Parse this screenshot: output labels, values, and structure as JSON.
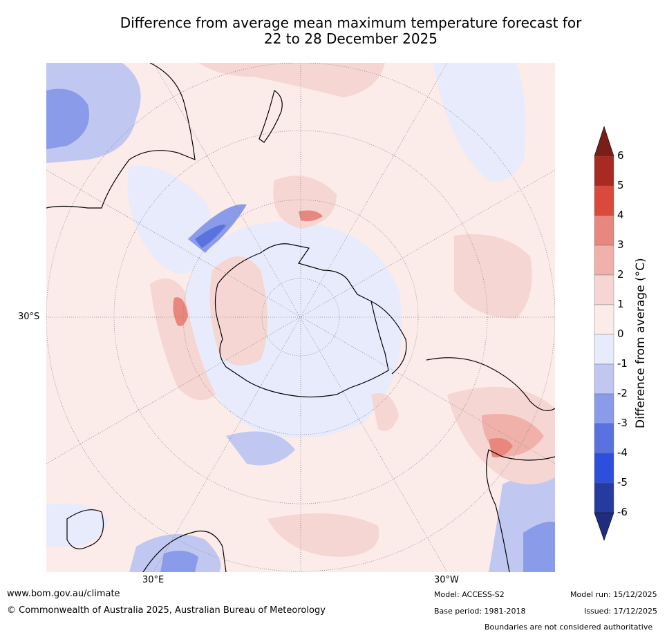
{
  "title_line1": "Difference from average mean maximum temperature forecast for",
  "title_line2": "22 to 28 December 2025",
  "lat_label": "30°S",
  "lon_labels": [
    "30°E",
    "30°W"
  ],
  "colorbar": {
    "label": "Difference from average (°C)",
    "ticks": [
      "6",
      "5",
      "4",
      "3",
      "2",
      "1",
      "0",
      "-1",
      "-2",
      "-3",
      "-4",
      "-5",
      "-6"
    ],
    "colors": [
      "#7b1e1a",
      "#a92a23",
      "#d94a3c",
      "#e8877d",
      "#efb1aa",
      "#f5d6d3",
      "#fbebe9",
      "#e8ebfb",
      "#c0c8f2",
      "#8a9be9",
      "#5a72e0",
      "#2d4fdd",
      "#263b9f",
      "#1f2d7d"
    ]
  },
  "footer": {
    "website": "www.bom.gov.au/climate",
    "copyright": "© Commonwealth of Australia 2025, Australian Bureau of Meteorology",
    "model": "Model: ACCESS-S2",
    "base_period": "Base period: 1981-2018",
    "model_run": "Model run: 15/12/2025",
    "issued": "Issued: 17/12/2025",
    "disclaimer": "Boundaries are not considered authoritative"
  }
}
